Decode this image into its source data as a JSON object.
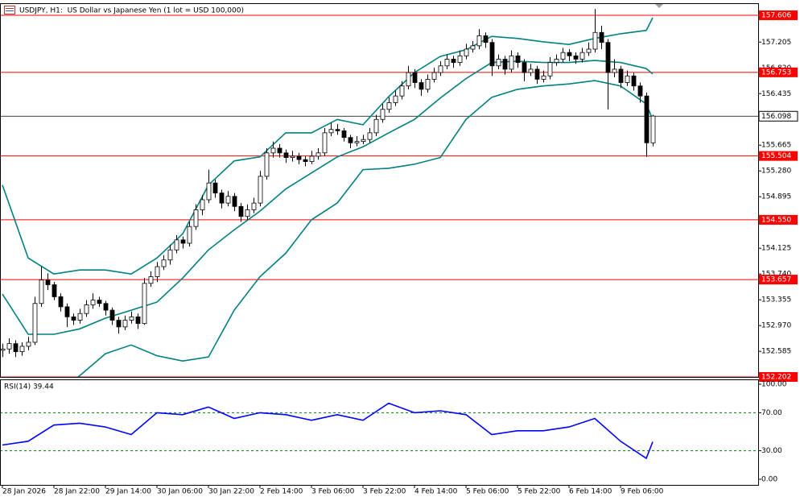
{
  "chart_data": {
    "type": "candlestick",
    "title": "USDJPY, H1:  US Dollar vs Japanese Yen (1 lot = USD 100,000)",
    "xlim": [
      -0.375,
      117.375
    ],
    "ylim": [
      152.202,
      157.774
    ],
    "yticks": [
      157.205,
      {
        "value": 156.82,
        "label": "156.820"
      },
      156.435,
      155.665,
      {
        "value": 155.28,
        "label": "155.280"
      },
      154.895,
      154.125,
      {
        "value": 153.74,
        "label": "153.740"
      },
      153.355,
      {
        "value": 152.97,
        "label": "152.970"
      },
      152.585
    ],
    "xticks": [
      {
        "value": 0,
        "label": "28 Jan 2026"
      },
      {
        "value": 8,
        "label": "28 Jan 22:00"
      },
      {
        "value": 16,
        "label": "29 Jan 14:00"
      },
      {
        "value": 24,
        "label": "30 Jan 06:00"
      },
      {
        "value": 32,
        "label": "30 Jan 22:00"
      },
      {
        "value": 40,
        "label": "2 Feb 14:00"
      },
      {
        "value": 48,
        "label": "3 Feb 06:00"
      },
      {
        "value": 56,
        "label": "3 Feb 22:00"
      },
      {
        "value": 64,
        "label": "4 Feb 14:00"
      },
      {
        "value": 72,
        "label": "5 Feb 06:00"
      },
      {
        "value": 80,
        "label": "5 Feb 22:00"
      },
      {
        "value": 88,
        "label": "6 Feb 14:00"
      },
      {
        "value": 96,
        "label": "9 Feb 06:00"
      }
    ],
    "level_color": "#ff0000",
    "levels": [
      157.606,
      156.753,
      155.504,
      {
        "value": 154.55,
        "label": "154.550"
      },
      153.657,
      152.202
    ],
    "current_price": 156.098,
    "up_color": "#ffffff",
    "down_color": "#000000",
    "ohlc": [
      [
        152.6,
        152.7,
        152.5,
        152.62
      ],
      [
        152.62,
        152.78,
        152.55,
        152.7
      ],
      [
        152.7,
        152.75,
        152.5,
        152.58
      ],
      [
        152.58,
        152.72,
        152.52,
        152.66
      ],
      [
        152.66,
        152.8,
        152.6,
        152.72
      ],
      [
        152.72,
        153.4,
        152.68,
        153.3
      ],
      [
        153.3,
        153.85,
        153.25,
        153.65
      ],
      [
        153.65,
        153.75,
        153.5,
        153.58
      ],
      [
        153.58,
        153.62,
        153.35,
        153.4
      ],
      [
        153.4,
        153.45,
        153.18,
        153.25
      ],
      [
        153.25,
        153.3,
        152.95,
        153.1
      ],
      [
        153.1,
        153.15,
        152.98,
        153.05
      ],
      [
        153.05,
        153.22,
        153.0,
        153.15
      ],
      [
        153.15,
        153.35,
        153.1,
        153.28
      ],
      [
        153.28,
        153.45,
        153.22,
        153.35
      ],
      [
        153.35,
        153.4,
        153.25,
        153.3
      ],
      [
        153.3,
        153.34,
        153.12,
        153.2
      ],
      [
        153.2,
        153.24,
        152.98,
        153.05
      ],
      [
        153.05,
        153.1,
        152.85,
        152.95
      ],
      [
        152.95,
        153.12,
        152.9,
        153.05
      ],
      [
        153.05,
        153.18,
        153.0,
        153.1
      ],
      [
        153.1,
        153.15,
        152.92,
        153.0
      ],
      [
        153.0,
        153.68,
        152.98,
        153.6
      ],
      [
        153.6,
        153.78,
        153.55,
        153.7
      ],
      [
        153.7,
        153.92,
        153.62,
        153.85
      ],
      [
        153.85,
        154.02,
        153.8,
        153.95
      ],
      [
        153.95,
        154.18,
        153.88,
        154.1
      ],
      [
        154.1,
        154.32,
        154.05,
        154.25
      ],
      [
        154.25,
        154.3,
        154.12,
        154.2
      ],
      [
        154.2,
        154.52,
        154.15,
        154.45
      ],
      [
        154.45,
        154.78,
        154.4,
        154.7
      ],
      [
        154.7,
        154.92,
        154.62,
        154.85
      ],
      [
        154.85,
        155.3,
        154.8,
        155.1
      ],
      [
        155.1,
        155.15,
        154.88,
        154.95
      ],
      [
        154.95,
        155.0,
        154.72,
        154.8
      ],
      [
        154.8,
        154.98,
        154.75,
        154.9
      ],
      [
        154.9,
        154.95,
        154.68,
        154.75
      ],
      [
        154.75,
        154.8,
        154.52,
        154.6
      ],
      [
        154.6,
        154.78,
        154.55,
        154.7
      ],
      [
        154.7,
        154.88,
        154.65,
        154.8
      ],
      [
        154.8,
        155.28,
        154.75,
        155.2
      ],
      [
        155.2,
        155.62,
        155.15,
        155.55
      ],
      [
        155.55,
        155.72,
        155.48,
        155.62
      ],
      [
        155.62,
        155.68,
        155.48,
        155.55
      ],
      [
        155.55,
        155.6,
        155.4,
        155.48
      ],
      [
        155.48,
        155.58,
        155.42,
        155.5
      ],
      [
        155.5,
        155.55,
        155.38,
        155.45
      ],
      [
        155.45,
        155.5,
        155.35,
        155.42
      ],
      [
        155.42,
        155.58,
        155.38,
        155.5
      ],
      [
        155.5,
        155.62,
        155.45,
        155.55
      ],
      [
        155.55,
        155.92,
        155.5,
        155.85
      ],
      [
        155.85,
        156.0,
        155.8,
        155.9
      ],
      [
        155.9,
        155.98,
        155.82,
        155.88
      ],
      [
        155.88,
        155.92,
        155.72,
        155.78
      ],
      [
        155.78,
        155.82,
        155.62,
        155.7
      ],
      [
        155.7,
        155.8,
        155.65,
        155.72
      ],
      [
        155.72,
        155.82,
        155.68,
        155.75
      ],
      [
        155.75,
        155.92,
        155.7,
        155.85
      ],
      [
        155.85,
        156.12,
        155.8,
        156.05
      ],
      [
        156.05,
        156.28,
        156.0,
        156.2
      ],
      [
        156.2,
        156.38,
        156.15,
        156.3
      ],
      [
        156.3,
        156.48,
        156.25,
        156.4
      ],
      [
        156.4,
        156.62,
        156.35,
        156.55
      ],
      [
        156.55,
        156.85,
        156.5,
        156.75
      ],
      [
        156.75,
        156.8,
        156.52,
        156.6
      ],
      [
        156.6,
        156.65,
        156.4,
        156.5
      ],
      [
        156.5,
        156.72,
        156.45,
        156.65
      ],
      [
        156.65,
        156.82,
        156.6,
        156.75
      ],
      [
        156.75,
        156.92,
        156.7,
        156.85
      ],
      [
        156.85,
        157.02,
        156.8,
        156.95
      ],
      [
        156.95,
        157.0,
        156.82,
        156.9
      ],
      [
        156.9,
        157.08,
        156.85,
        157.0
      ],
      [
        157.0,
        157.18,
        156.95,
        157.1
      ],
      [
        157.1,
        157.22,
        157.05,
        157.15
      ],
      [
        157.15,
        157.4,
        157.1,
        157.3
      ],
      [
        157.3,
        157.35,
        157.12,
        157.2
      ],
      [
        157.2,
        157.25,
        156.7,
        156.85
      ],
      [
        156.85,
        157.02,
        156.8,
        156.95
      ],
      [
        156.95,
        157.0,
        156.72,
        156.8
      ],
      [
        156.8,
        157.08,
        156.75,
        157.0
      ],
      [
        157.0,
        157.05,
        156.82,
        156.9
      ],
      [
        156.9,
        156.95,
        156.62,
        156.75
      ],
      [
        156.75,
        156.88,
        156.7,
        156.8
      ],
      [
        156.8,
        156.85,
        156.58,
        156.65
      ],
      [
        156.65,
        156.78,
        156.6,
        156.7
      ],
      [
        156.7,
        156.98,
        156.65,
        156.9
      ],
      [
        156.9,
        157.02,
        156.85,
        156.95
      ],
      [
        156.95,
        157.12,
        156.9,
        157.05
      ],
      [
        157.05,
        157.1,
        156.92,
        157.0
      ],
      [
        157.0,
        157.05,
        156.88,
        156.95
      ],
      [
        156.95,
        157.12,
        156.9,
        157.05
      ],
      [
        157.05,
        157.2,
        157.0,
        157.1
      ],
      [
        157.1,
        157.7,
        157.05,
        157.35
      ],
      [
        157.35,
        157.45,
        157.1,
        157.2
      ],
      [
        157.2,
        157.25,
        156.2,
        156.75
      ],
      [
        156.75,
        156.95,
        156.68,
        156.8
      ],
      [
        156.8,
        156.85,
        156.52,
        156.6
      ],
      [
        156.6,
        156.78,
        156.55,
        156.7
      ],
      [
        156.7,
        156.75,
        156.48,
        156.55
      ],
      [
        156.55,
        156.6,
        156.3,
        156.4
      ],
      [
        156.4,
        156.45,
        155.49,
        155.7
      ],
      [
        155.7,
        156.12,
        155.65,
        156.1
      ]
    ],
    "bollinger": {
      "color": "#008080",
      "x": [
        0,
        4,
        8,
        12,
        16,
        20,
        24,
        28,
        32,
        36,
        40,
        44,
        48,
        52,
        56,
        60,
        64,
        68,
        72,
        76,
        80,
        84,
        88,
        92,
        96,
        100,
        101
      ],
      "upper": [
        155.07,
        153.98,
        153.74,
        153.8,
        153.8,
        153.74,
        153.98,
        154.34,
        155.07,
        155.43,
        155.49,
        155.85,
        155.85,
        156.05,
        155.97,
        156.39,
        156.75,
        156.99,
        157.09,
        157.29,
        157.26,
        157.21,
        157.17,
        157.26,
        157.33,
        157.38,
        157.57
      ],
      "middle": [
        153.44,
        152.84,
        152.84,
        152.92,
        153.08,
        153.2,
        153.32,
        153.68,
        154.1,
        154.4,
        154.68,
        155.01,
        155.25,
        155.49,
        155.64,
        155.85,
        156.05,
        156.37,
        156.66,
        156.9,
        156.92,
        156.9,
        156.9,
        156.93,
        156.9,
        156.81,
        156.73
      ],
      "lower": [
        151.5,
        151.7,
        151.95,
        152.22,
        152.55,
        152.68,
        152.52,
        152.44,
        152.5,
        153.2,
        153.7,
        154.05,
        154.55,
        154.8,
        155.3,
        155.32,
        155.38,
        155.48,
        156.05,
        156.38,
        156.5,
        156.55,
        156.58,
        156.63,
        156.55,
        156.28,
        156.05
      ]
    },
    "rsi": {
      "label": "RSI(14) 39.44",
      "color": "#0000ff",
      "level_color": "#008000",
      "ylim": [
        -5.93,
        104.24
      ],
      "yticks": [
        {
          "value": 100,
          "label": "100.00"
        },
        {
          "value": 70,
          "label": "70.00"
        },
        {
          "value": 30,
          "label": "30.00"
        },
        {
          "value": 0,
          "label": "0.00"
        }
      ],
      "levels": [
        70,
        30
      ],
      "x": [
        0,
        4,
        8,
        12,
        16,
        20,
        24,
        28,
        32,
        36,
        40,
        44,
        48,
        52,
        56,
        60,
        64,
        68,
        72,
        76,
        80,
        84,
        88,
        92,
        96,
        100,
        101
      ],
      "values": [
        36,
        40,
        57,
        59,
        55,
        47,
        70,
        68,
        76,
        64,
        70,
        68,
        62,
        68,
        62,
        80,
        70,
        72,
        68,
        47,
        51,
        51,
        55,
        64,
        40,
        22,
        39.44
      ]
    }
  }
}
